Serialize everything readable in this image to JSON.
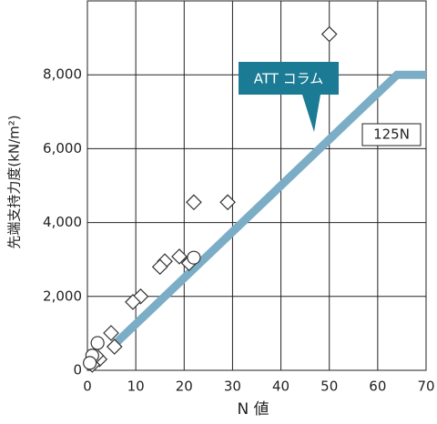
{
  "chart_data": {
    "type": "scatter",
    "xlabel": "N 値",
    "ylabel": "先端支持力度(kN/m²)",
    "xlim": [
      0,
      70
    ],
    "xticks": [
      0,
      10,
      20,
      30,
      40,
      50,
      60,
      70
    ],
    "ylim": [
      0,
      10000
    ],
    "yticks": [
      0,
      {
        "value": 2000,
        "label": "2,000"
      },
      {
        "value": 4000,
        "label": "4,000"
      },
      {
        "value": 6000,
        "label": "6,000"
      },
      {
        "value": 8000,
        "label": "8,000"
      }
    ],
    "grid": true,
    "series": [
      {
        "marker": "diamond",
        "color": "#333333",
        "x": [
          50,
          22,
          29,
          19,
          16,
          15,
          21,
          11,
          9.4,
          4.9,
          5.6,
          2.5,
          1,
          1.8
        ],
        "values": [
          9100,
          4550,
          4550,
          3080,
          2950,
          2800,
          2900,
          2000,
          1850,
          1010,
          640,
          300,
          150,
          400
        ]
      },
      {
        "marker": "circle",
        "color": "#333333",
        "x": [
          22,
          2.1,
          1,
          0.5
        ],
        "values": [
          3050,
          740,
          400,
          200
        ]
      },
      {
        "marker": "line",
        "name": "125N",
        "color": "#7badc6",
        "x": [
          6,
          64,
          70
        ],
        "values": [
          750,
          8000,
          8000
        ]
      }
    ],
    "annotation": "ATT コラム",
    "annotation_color": "#1b7a94"
  }
}
